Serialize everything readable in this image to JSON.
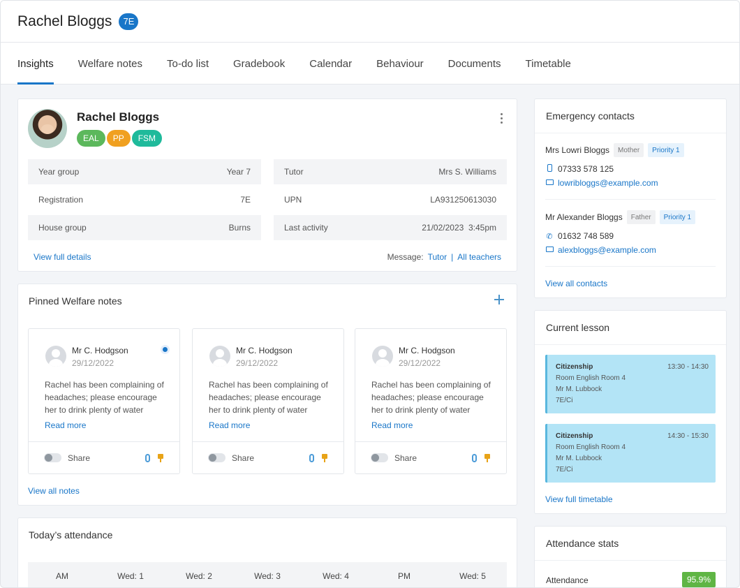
{
  "header": {
    "student_name": "Rachel Bloggs",
    "form_badge": "7E"
  },
  "tabs": [
    {
      "label": "Insights",
      "active": true
    },
    {
      "label": "Welfare notes"
    },
    {
      "label": "To-do list"
    },
    {
      "label": "Gradebook"
    },
    {
      "label": "Calendar"
    },
    {
      "label": "Behaviour"
    },
    {
      "label": "Documents"
    },
    {
      "label": "Timetable"
    }
  ],
  "profile": {
    "name": "Rachel Bloggs",
    "chips": [
      {
        "label": "EAL",
        "color": "#5cb85c"
      },
      {
        "label": "PP",
        "color": "#f0a020"
      },
      {
        "label": "FSM",
        "color": "#1fba9b"
      }
    ],
    "details_left": [
      {
        "label": "Year group",
        "value": "Year 7"
      },
      {
        "label": "Registration",
        "value": "7E"
      },
      {
        "label": "House group",
        "value": "Burns"
      }
    ],
    "details_right": [
      {
        "label": "Tutor",
        "value": "Mrs S. Williams"
      },
      {
        "label": "UPN",
        "value": "LA931250613030"
      },
      {
        "label": "Last activity",
        "value": "21/02/2023  3:45pm"
      }
    ],
    "view_full_details": "View full details",
    "message_label": "Message:",
    "message_tutor": "Tutor",
    "message_sep": "|",
    "message_all": "All teachers"
  },
  "welfare": {
    "title": "Pinned Welfare notes",
    "notes": [
      {
        "author": "Mr C. Hodgson",
        "date": "29/12/2022",
        "body": "Rachel has been complaining of headaches; please encourage her to drink plenty of water",
        "read_more": "Read more",
        "share": "Share",
        "unread": true
      },
      {
        "author": "Mr C. Hodgson",
        "date": "29/12/2022",
        "body": "Rachel has been complaining of headaches; please encourage her to drink plenty of water",
        "read_more": "Read more",
        "share": "Share",
        "unread": false
      },
      {
        "author": "Mr C. Hodgson",
        "date": "29/12/2022",
        "body": "Rachel has been complaining of headaches; please encourage her to drink plenty of water",
        "read_more": "Read more",
        "share": "Share",
        "unread": false
      }
    ],
    "view_all": "View all notes"
  },
  "attendance": {
    "title": "Today’s attendance",
    "columns": [
      "AM",
      "Wed: 1",
      "Wed: 2",
      "Wed: 3",
      "Wed: 4",
      "PM",
      "Wed: 5"
    ]
  },
  "emergency": {
    "title": "Emergency contacts",
    "contacts": [
      {
        "name": "Mrs Lowri Bloggs",
        "relation": "Mother",
        "priority": "Priority 1",
        "phone": "07333 578 125",
        "email": "lowribloggs@example.com"
      },
      {
        "name": "Mr Alexander Bloggs",
        "relation": "Father",
        "priority": "Priority 1",
        "phone": "01632 748 589",
        "email": "alexbloggs@example.com"
      }
    ],
    "view_all": "View all contacts"
  },
  "lesson": {
    "title": "Current lesson",
    "lessons": [
      {
        "subject": "Citizenship",
        "time": "13:30 - 14:30",
        "room": "Room English Room 4",
        "teacher": "Mr M. Lubbock",
        "group": "7E/Ci"
      },
      {
        "subject": "Citizenship",
        "time": "14:30 - 15:30",
        "room": "Room English Room 4",
        "teacher": "Mr M. Lubbock",
        "group": "7E/Ci"
      }
    ],
    "view_full": "View full timetable"
  },
  "stats": {
    "title": "Attendance stats",
    "label": "Attendance",
    "value": "95.9%"
  }
}
